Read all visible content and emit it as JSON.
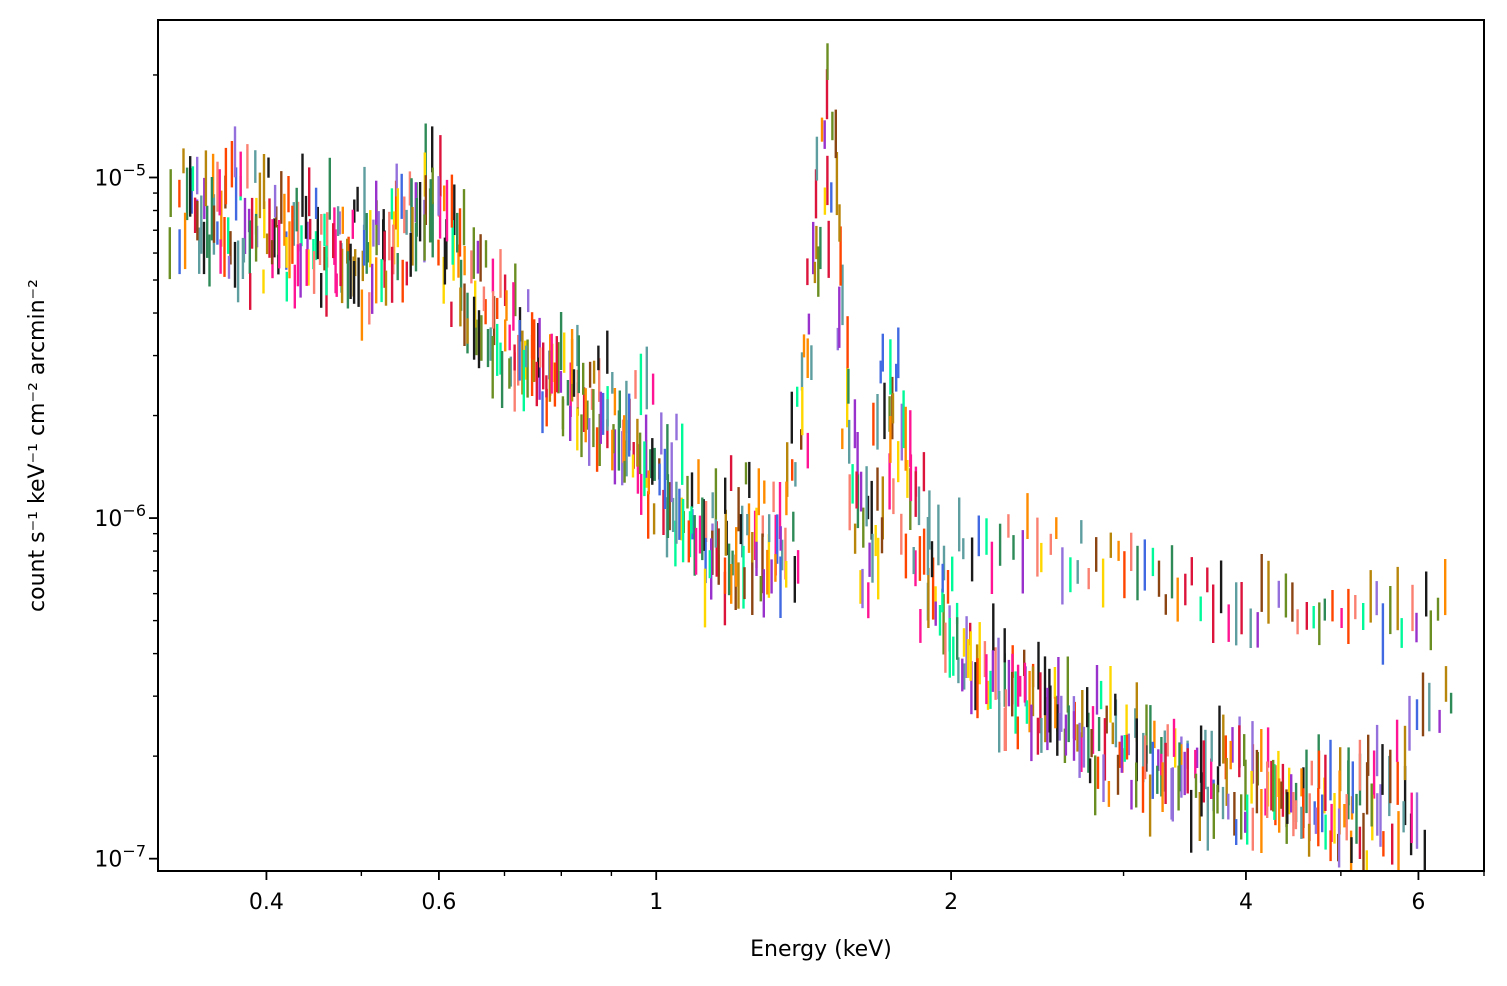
{
  "chart_data": {
    "type": "scatter",
    "style": "vertical error bars, multiple overlaid spectra",
    "xlabel": "Energy (keV)",
    "ylabel": "count s⁻¹ keV⁻¹ cm⁻² arcmin⁻²",
    "xscale": "log",
    "yscale": "log",
    "xlim": [
      0.31,
      7.0
    ],
    "ylim": [
      9.2e-08,
      2.9e-05
    ],
    "grid": false,
    "xticks": [
      {
        "value": 0.4,
        "label": "0.4"
      },
      {
        "value": 0.6,
        "label": "0.6"
      },
      {
        "value": 1,
        "label": "1"
      },
      {
        "value": 2,
        "label": "2"
      },
      {
        "value": 4,
        "label": "4"
      },
      {
        "value": 6,
        "label": "6"
      }
    ],
    "yticks": [
      {
        "value": 1e-07,
        "base": "10",
        "exp": "−7"
      },
      {
        "value": 1e-06,
        "base": "10",
        "exp": "−6"
      },
      {
        "value": 1e-05,
        "base": "10",
        "exp": "−5"
      }
    ],
    "series_colors": [
      "#1a1a1a",
      "#dc143c",
      "#ff8c00",
      "#4169e1",
      "#9932cc",
      "#2e8b57",
      "#ffd700",
      "#ff1493",
      "#00fa9a",
      "#8b4513",
      "#fa8072",
      "#9370db",
      "#b8860b",
      "#5f9ea0",
      "#ff4500",
      "#6b8e23"
    ],
    "series": [
      {
        "x": [
          0.32,
          0.36,
          0.42,
          0.5,
          0.57,
          0.62,
          0.7,
          0.8,
          0.92,
          1.05,
          1.2,
          1.33,
          1.43,
          1.48,
          1.55,
          1.62,
          1.7,
          1.78,
          1.86,
          2.0,
          2.3,
          2.8,
          3.5,
          4.5,
          6.0
        ],
        "y": [
          8.5e-06,
          7.8e-06,
          6.6e-06,
          5.9e-06,
          9.2e-06,
          4.6e-06,
          3.2e-06,
          2.3e-06,
          1.6e-06,
          9e-07,
          7.5e-07,
          8.5e-07,
          5e-06,
          1.5e-05,
          1.6e-06,
          7.5e-07,
          2.4e-06,
          9e-07,
          5.5e-07,
          4e-07,
          3e-07,
          2.3e-07,
          2e-07,
          1.7e-07,
          1.4e-07
        ]
      },
      {
        "x": [
          0.33,
          0.37,
          0.43,
          0.51,
          0.58,
          0.64,
          0.72,
          0.82,
          0.94,
          1.08,
          1.22,
          1.35,
          1.44,
          1.49,
          1.56,
          1.63,
          1.71,
          1.8,
          1.9,
          2.1,
          2.5,
          3.0,
          3.8,
          5.0,
          6.6
        ],
        "y": [
          1.1e-05,
          9.5e-06,
          7e-06,
          6.8e-06,
          1e-05,
          4.2e-06,
          3e-06,
          2.6e-06,
          1.8e-06,
          8.5e-07,
          8e-07,
          9e-07,
          6e-06,
          1.9e-05,
          1.9e-06,
          7e-07,
          3e-06,
          1.1e-06,
          5e-07,
          4.5e-07,
          3.2e-07,
          2.5e-07,
          1.8e-07,
          1.5e-07,
          3e-07
        ]
      },
      {
        "x": [
          0.34,
          0.39,
          0.45,
          0.53,
          0.6,
          0.66,
          0.75,
          0.86,
          0.98,
          1.12,
          1.27,
          1.38,
          1.46,
          1.5,
          1.58,
          1.66,
          1.73,
          1.84,
          2.0,
          2.4,
          3.0,
          3.9,
          5.0,
          6.5
        ],
        "y": [
          9e-06,
          1.05e-05,
          8e-06,
          7.2e-06,
          1.1e-05,
          5.5e-06,
          3.5e-06,
          2.8e-06,
          2.2e-06,
          1.1e-06,
          1.2e-06,
          1.1e-06,
          6.5e-06,
          2e-05,
          2e-06,
          8.5e-07,
          3.2e-06,
          1.3e-06,
          8e-07,
          8.5e-07,
          7e-07,
          5.5e-07,
          5.3e-07,
          5.5e-07
        ]
      },
      {
        "x": [
          0.32,
          0.38,
          0.44,
          0.52,
          0.59,
          0.65,
          0.73,
          0.84,
          0.96,
          1.1,
          1.25,
          1.36,
          1.45,
          1.52,
          1.6,
          1.65,
          1.75,
          1.88,
          2.05,
          2.6,
          3.3,
          4.2,
          5.5
        ],
        "y": [
          7.2e-06,
          6e-06,
          5.2e-06,
          4.5e-06,
          8e-06,
          3.8e-06,
          2.6e-06,
          2e-06,
          1.5e-06,
          7e-07,
          6.5e-07,
          7.5e-07,
          4.5e-06,
          1.2e-05,
          1.4e-06,
          5e-07,
          2.2e-06,
          8e-07,
          3.5e-07,
          2.5e-07,
          1.6e-07,
          1.4e-07,
          1.1e-07
        ]
      },
      {
        "x": [
          0.335,
          0.385,
          0.46,
          0.54,
          0.61,
          0.68,
          0.77,
          0.88,
          1.0,
          1.15,
          1.3,
          1.4,
          1.47,
          1.51,
          1.59,
          1.68,
          1.76,
          1.92,
          2.2,
          2.9,
          3.6,
          4.8,
          6.2
        ],
        "y": [
          8e-06,
          5.5e-06,
          6e-06,
          5e-06,
          8.5e-06,
          4e-06,
          2.9e-06,
          2.2e-06,
          1.4e-06,
          7.8e-07,
          7e-07,
          8e-07,
          5.5e-06,
          1.4e-05,
          1.7e-06,
          6.5e-07,
          2.6e-06,
          7e-07,
          3e-07,
          1.8e-07,
          1.5e-07,
          1.3e-07,
          1.1e-07
        ]
      }
    ]
  }
}
